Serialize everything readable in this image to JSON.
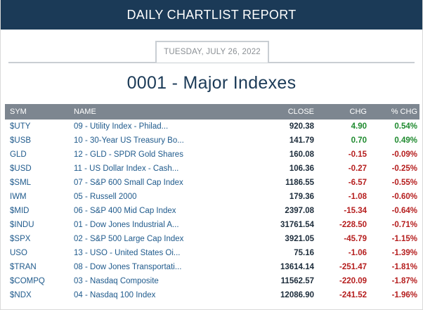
{
  "header": {
    "title": "DAILY CHARTLIST REPORT"
  },
  "report": {
    "date": "TUESDAY, JULY 26, 2022",
    "list_title": "0001 - Major Indexes"
  },
  "table": {
    "columns": {
      "sym": "SYM",
      "name": "NAME",
      "close": "CLOSE",
      "chg": "CHG",
      "pct": "% CHG"
    },
    "colors": {
      "positive": "#1e8a2e",
      "negative": "#b51d1d"
    },
    "rows": [
      {
        "sym": "$UTY",
        "name": "09 - Utility Index - Philad...",
        "close": "920.38",
        "chg": "4.90",
        "pct": "0.54%",
        "dir": "pos"
      },
      {
        "sym": "$USB",
        "name": "10 - 30-Year US Treasury Bo...",
        "close": "141.79",
        "chg": "0.70",
        "pct": "0.49%",
        "dir": "pos"
      },
      {
        "sym": "GLD",
        "name": "12 - GLD - SPDR Gold Shares",
        "close": "160.08",
        "chg": "-0.15",
        "pct": "-0.09%",
        "dir": "neg"
      },
      {
        "sym": "$USD",
        "name": "11 - US Dollar Index - Cash...",
        "close": "106.36",
        "chg": "-0.27",
        "pct": "-0.25%",
        "dir": "neg"
      },
      {
        "sym": "$SML",
        "name": "07 - S&P 600 Small Cap Index",
        "close": "1186.55",
        "chg": "-6.57",
        "pct": "-0.55%",
        "dir": "neg"
      },
      {
        "sym": "IWM",
        "name": "05 - Russell 2000",
        "close": "179.36",
        "chg": "-1.08",
        "pct": "-0.60%",
        "dir": "neg"
      },
      {
        "sym": "$MID",
        "name": "06 - S&P 400 Mid Cap Index",
        "close": "2397.08",
        "chg": "-15.34",
        "pct": "-0.64%",
        "dir": "neg"
      },
      {
        "sym": "$INDU",
        "name": "01 - Dow Jones Industrial A...",
        "close": "31761.54",
        "chg": "-228.50",
        "pct": "-0.71%",
        "dir": "neg"
      },
      {
        "sym": "$SPX",
        "name": "02 - S&P 500 Large Cap Index",
        "close": "3921.05",
        "chg": "-45.79",
        "pct": "-1.15%",
        "dir": "neg"
      },
      {
        "sym": "USO",
        "name": "13 - USO - United States Oi...",
        "close": "75.16",
        "chg": "-1.06",
        "pct": "-1.39%",
        "dir": "neg"
      },
      {
        "sym": "$TRAN",
        "name": "08 - Dow Jones Transportati...",
        "close": "13614.14",
        "chg": "-251.47",
        "pct": "-1.81%",
        "dir": "neg"
      },
      {
        "sym": "$COMPQ",
        "name": "03 - Nasdaq Composite",
        "close": "11562.57",
        "chg": "-220.09",
        "pct": "-1.87%",
        "dir": "neg"
      },
      {
        "sym": "$NDX",
        "name": "04 - Nasdaq 100 Index",
        "close": "12086.90",
        "chg": "-241.52",
        "pct": "-1.96%",
        "dir": "neg"
      }
    ]
  }
}
